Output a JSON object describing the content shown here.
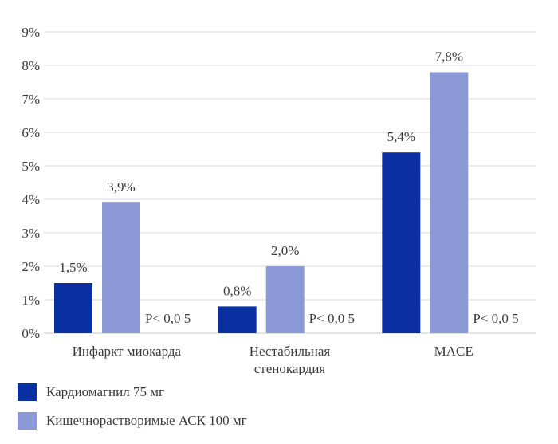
{
  "chart_data": {
    "type": "bar",
    "categories": [
      [
        "Инфаркт миокарда"
      ],
      [
        "Нестабильная",
        "стенокардия"
      ],
      [
        "MACE"
      ]
    ],
    "series": [
      {
        "name": "Кардиомагнил 75 мг",
        "values": [
          1.5,
          0.8,
          5.4
        ],
        "labels": [
          "1,5%",
          "0,8%",
          "5,4%"
        ],
        "color": "#0a2fa3"
      },
      {
        "name": "Кишечнорастворимые АСК 100 мг",
        "values": [
          3.9,
          2.0,
          7.8
        ],
        "labels": [
          "3,9%",
          "2,0%",
          "7,8%"
        ],
        "color": "#8b9ad6"
      }
    ],
    "annotations": [
      "P< 0,0 5",
      "P< 0,0 5",
      "P< 0,0 5"
    ],
    "ylim": [
      0,
      9
    ],
    "yticks": [
      "0%",
      "1%",
      "2%",
      "3%",
      "4%",
      "5%",
      "6%",
      "7%",
      "8%",
      "9%"
    ],
    "grid": true,
    "legend_position": "bottom-left"
  }
}
